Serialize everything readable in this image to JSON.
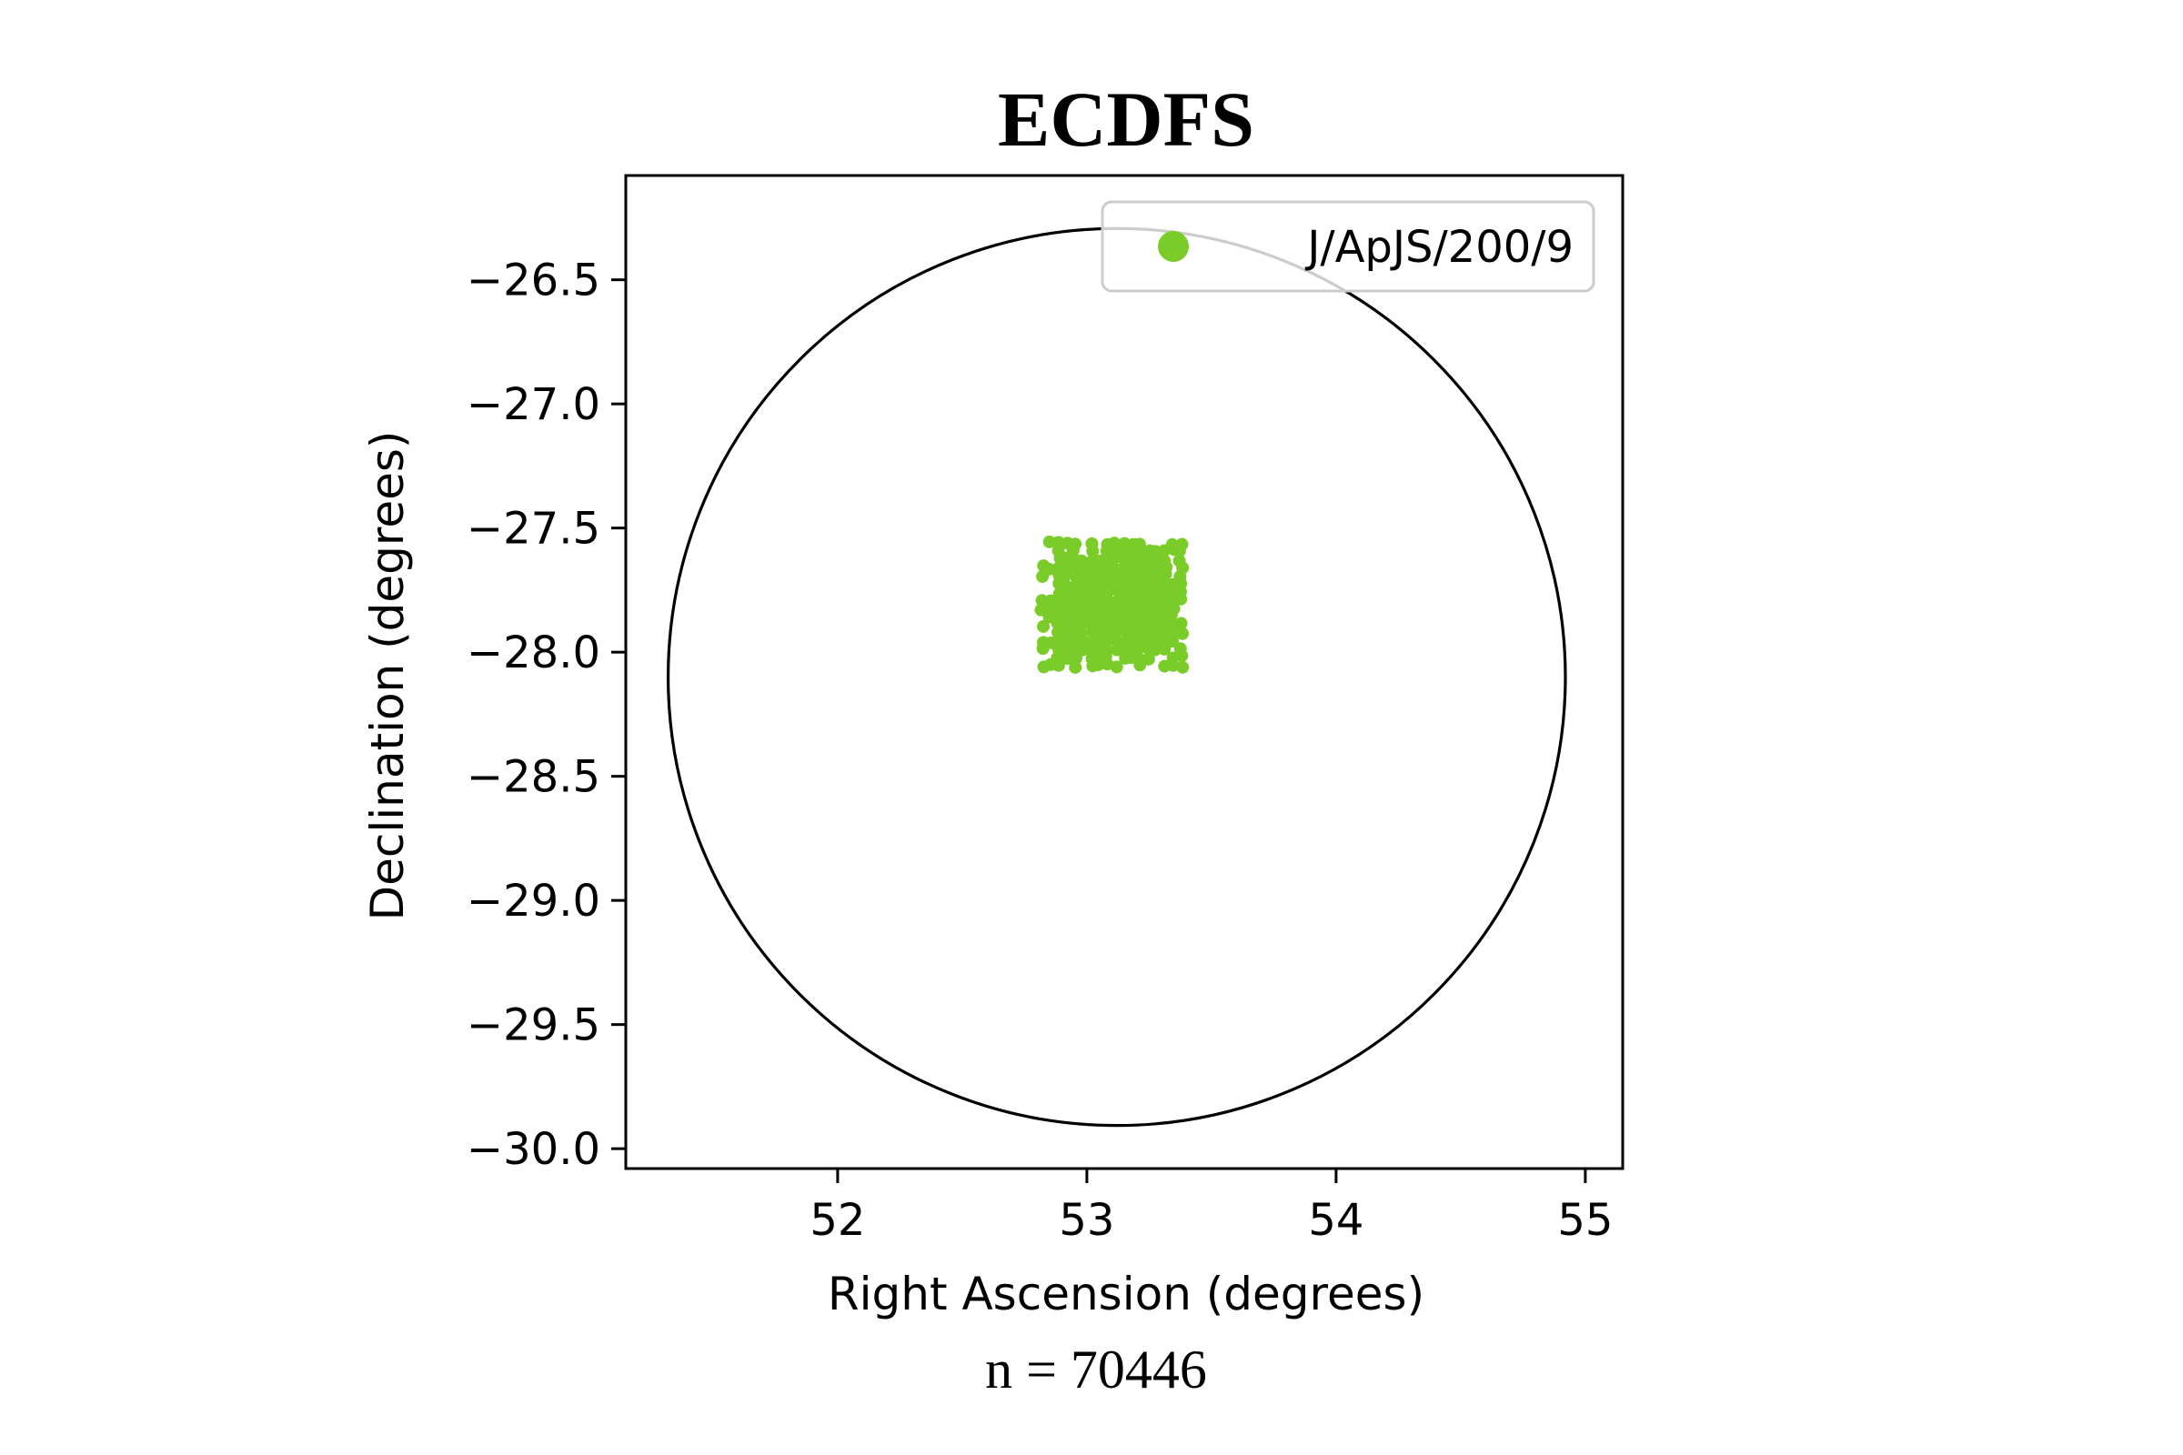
{
  "chart_data": {
    "type": "scatter",
    "title": "ECDFS",
    "xlabel": "Right Ascension (degrees)",
    "ylabel": "Declination (degrees)",
    "xlim": [
      51.15,
      55.15
    ],
    "ylim": [
      -30.08,
      -26.08
    ],
    "xticks": [
      52,
      53,
      54,
      55
    ],
    "xtick_labels": [
      "52",
      "53",
      "54",
      "55"
    ],
    "yticks": [
      -26.5,
      -27.0,
      -27.5,
      -28.0,
      -28.5,
      -29.0,
      -29.5,
      -30.0
    ],
    "ytick_labels": [
      "−26.5",
      "−27.0",
      "−27.5",
      "−28.0",
      "−28.5",
      "−29.0",
      "−29.5",
      "−30.0"
    ],
    "grid": false,
    "legend_position": "top-right",
    "series": [
      {
        "name": "J/ApJS/200/9",
        "color": "#7acc29",
        "ra_range": [
          52.82,
          53.39
        ],
        "dec_range": [
          -28.07,
          -27.56
        ]
      }
    ],
    "circle": {
      "center_ra": 53.12,
      "center_dec": -28.1,
      "radius_deg": 1.8,
      "color": "#000000"
    },
    "annotation": "n = 70446"
  }
}
